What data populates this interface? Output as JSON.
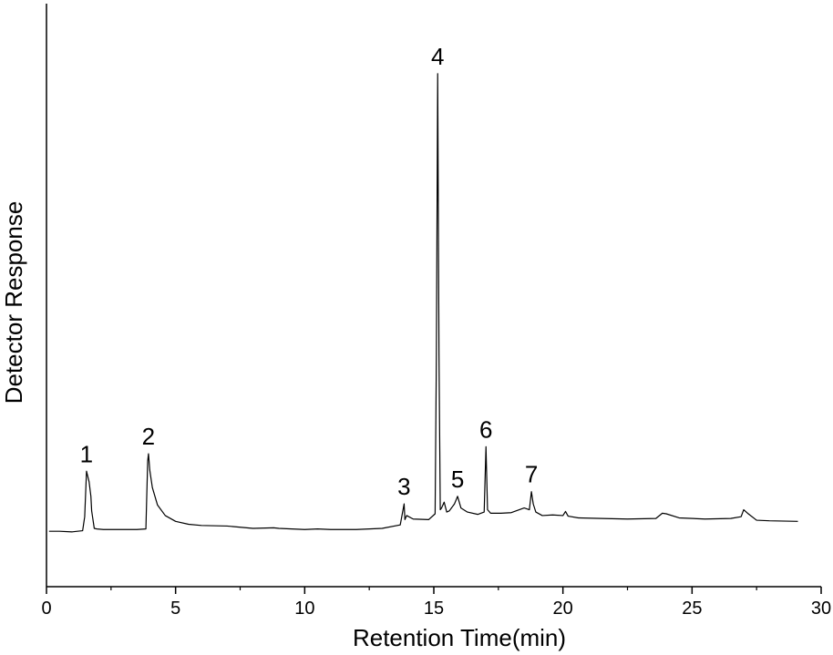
{
  "chart_data": {
    "type": "line",
    "title": "",
    "xlabel": "Retention Time(min)",
    "ylabel": "Detector Response",
    "xlim": [
      0,
      30
    ],
    "ylim": [
      0,
      100
    ],
    "x_ticks": [
      0,
      5,
      10,
      15,
      20,
      25,
      30
    ],
    "x_tick_labels": [
      "0",
      "5",
      "10",
      "15",
      "20",
      "25",
      "30"
    ],
    "y_ticks": [],
    "grid": false,
    "legend": "none",
    "series": [
      {
        "line_color": "#000000",
        "x": [
          0.1,
          0.5,
          1.0,
          1.4,
          1.48,
          1.55,
          1.65,
          1.72,
          1.75,
          1.85,
          1.95,
          2.2,
          2.6,
          3.0,
          3.5,
          3.85,
          3.88,
          3.92,
          3.95,
          4.0,
          4.1,
          4.3,
          4.6,
          5.0,
          5.5,
          6.0,
          7.0,
          8.0,
          8.8,
          9.0,
          9.5,
          10.0,
          10.5,
          11.0,
          12.0,
          13.0,
          13.7,
          13.85,
          13.88,
          13.95,
          14.2,
          14.8,
          15.05,
          15.1,
          15.15,
          15.2,
          15.25,
          15.3,
          15.4,
          15.5,
          15.6,
          15.8,
          15.92,
          16.05,
          16.3,
          16.7,
          16.95,
          17.02,
          17.08,
          17.2,
          17.6,
          18.0,
          18.5,
          18.7,
          18.78,
          18.85,
          18.95,
          19.2,
          19.6,
          20.0,
          20.1,
          20.2,
          20.6,
          21.5,
          22.5,
          23.6,
          23.85,
          24.0,
          24.5,
          25.5,
          26.5,
          26.9,
          27.0,
          27.15,
          27.5,
          28.0,
          29.1
        ],
        "y": [
          9.5,
          9.5,
          9.4,
          9.6,
          12,
          19.8,
          18,
          15.5,
          13,
          10,
          9.9,
          9.8,
          9.8,
          9.8,
          9.8,
          9.9,
          15,
          21.6,
          22.8,
          20,
          17,
          14,
          12.2,
          11.2,
          10.7,
          10.5,
          10.4,
          10.0,
          10.1,
          10.0,
          9.9,
          9.8,
          9.9,
          9.8,
          9.8,
          10.0,
          10.6,
          14.2,
          11.5,
          12.2,
          11.6,
          11.5,
          12.5,
          40,
          88,
          40,
          13.2,
          13.5,
          14.5,
          12.8,
          13,
          14.2,
          15.5,
          13.5,
          12.8,
          12.4,
          12.8,
          24.0,
          13.2,
          12.6,
          12.6,
          12.7,
          13.5,
          13.2,
          16.3,
          14.2,
          12.8,
          12.2,
          12.3,
          12.2,
          12.9,
          12.1,
          11.8,
          11.7,
          11.6,
          11.7,
          12.6,
          12.5,
          11.8,
          11.6,
          11.7,
          12.0,
          13.2,
          12.6,
          11.4,
          11.3,
          11.2
        ]
      }
    ],
    "annotations": [
      {
        "text": "1",
        "x": 1.55,
        "y": 19.8
      },
      {
        "text": "2",
        "x": 3.95,
        "y": 22.8
      },
      {
        "text": "3",
        "x": 13.85,
        "y": 14.2
      },
      {
        "text": "4",
        "x": 15.15,
        "y": 88
      },
      {
        "text": "5",
        "x": 15.92,
        "y": 15.5
      },
      {
        "text": "6",
        "x": 17.02,
        "y": 24.0
      },
      {
        "text": "7",
        "x": 18.78,
        "y": 16.3
      }
    ]
  }
}
